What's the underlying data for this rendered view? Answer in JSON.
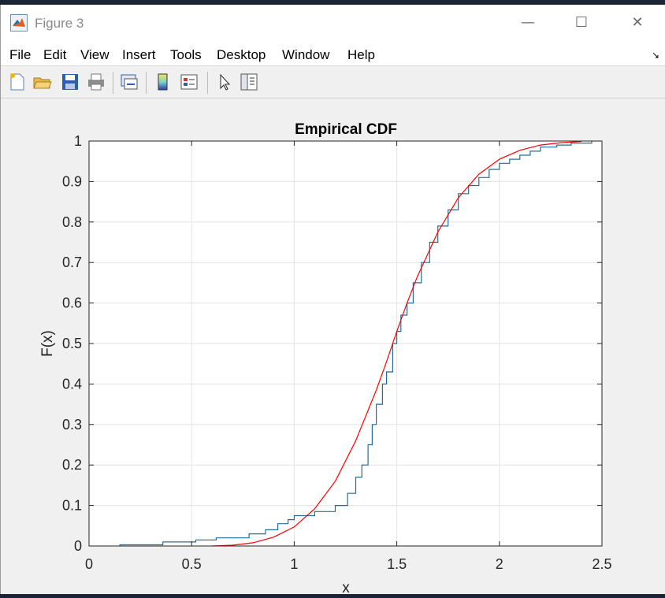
{
  "window": {
    "title": "Figure 3",
    "minimize_glyph": "—",
    "maximize_glyph": "☐",
    "close_glyph": "✕",
    "icon": "matlab-logo-icon"
  },
  "menu": {
    "items": [
      "File",
      "Edit",
      "View",
      "Insert",
      "Tools",
      "Desktop",
      "Window",
      "Help"
    ],
    "dock_glyph": "↘"
  },
  "toolbar": {
    "buttons": [
      {
        "name": "new-figure-icon"
      },
      {
        "name": "open-file-icon"
      },
      {
        "name": "save-icon"
      },
      {
        "name": "print-icon"
      },
      {
        "name": "link-plot-icon"
      },
      {
        "name": "insert-colorbar-icon"
      },
      {
        "name": "insert-legend-icon"
      },
      {
        "name": "edit-plot-pointer-icon"
      },
      {
        "name": "property-inspector-icon"
      }
    ]
  },
  "chart_data": {
    "type": "line",
    "title": "Empirical CDF",
    "xlabel": "x",
    "ylabel": "F(x)",
    "xlim": [
      0,
      2.5
    ],
    "ylim": [
      0,
      1
    ],
    "xticks": [
      "0",
      "0.5",
      "1",
      "1.5",
      "2",
      "2.5"
    ],
    "yticks": [
      "0",
      "0.1",
      "0.2",
      "0.3",
      "0.4",
      "0.5",
      "0.6",
      "0.7",
      "0.8",
      "0.9",
      "1"
    ],
    "grid": true,
    "series": [
      {
        "style": "stairs",
        "color": "#1f6e9e",
        "x": [
          0.15,
          0.36,
          0.52,
          0.62,
          0.78,
          0.86,
          0.92,
          0.97,
          1.0,
          1.1,
          1.2,
          1.26,
          1.3,
          1.33,
          1.36,
          1.38,
          1.4,
          1.43,
          1.45,
          1.48,
          1.5,
          1.52,
          1.55,
          1.58,
          1.62,
          1.66,
          1.7,
          1.75,
          1.8,
          1.85,
          1.9,
          1.95,
          2.0,
          2.05,
          2.1,
          2.15,
          2.2,
          2.28,
          2.35,
          2.45
        ],
        "y": [
          0.003,
          0.01,
          0.015,
          0.02,
          0.03,
          0.04,
          0.055,
          0.065,
          0.075,
          0.085,
          0.1,
          0.13,
          0.17,
          0.2,
          0.25,
          0.3,
          0.35,
          0.4,
          0.43,
          0.5,
          0.53,
          0.57,
          0.6,
          0.65,
          0.7,
          0.75,
          0.79,
          0.83,
          0.87,
          0.89,
          0.91,
          0.93,
          0.945,
          0.955,
          0.965,
          0.975,
          0.985,
          0.99,
          0.995,
          1.0
        ]
      },
      {
        "style": "line",
        "color": "#ff0000",
        "x": [
          0.6,
          0.7,
          0.8,
          0.9,
          1.0,
          1.1,
          1.2,
          1.3,
          1.4,
          1.45,
          1.5,
          1.55,
          1.6,
          1.7,
          1.8,
          1.9,
          2.0,
          2.1,
          2.2,
          2.3,
          2.4
        ],
        "y": [
          0.0,
          0.002,
          0.008,
          0.022,
          0.047,
          0.092,
          0.16,
          0.26,
          0.385,
          0.455,
          0.53,
          0.6,
          0.665,
          0.775,
          0.86,
          0.918,
          0.955,
          0.977,
          0.99,
          0.996,
          0.999
        ]
      }
    ]
  }
}
